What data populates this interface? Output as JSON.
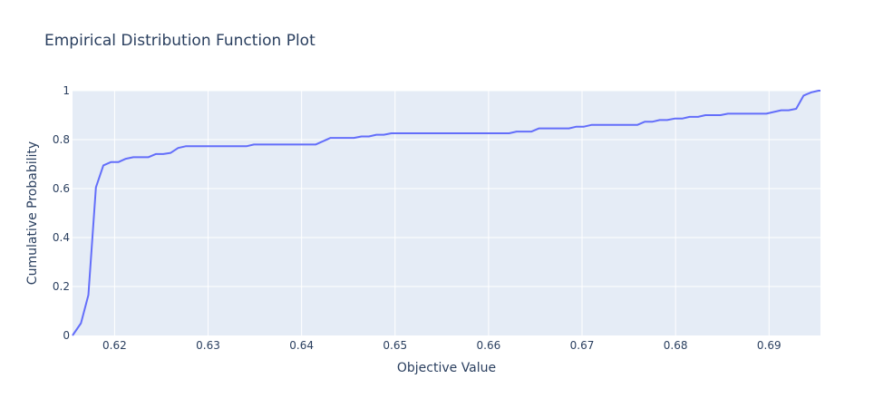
{
  "chart_data": {
    "type": "line",
    "title": "Empirical Distribution Function Plot",
    "xlabel": "Objective Value",
    "ylabel": "Cumulative Probability",
    "xlim": [
      0.6155,
      0.6955
    ],
    "ylim": [
      0,
      1
    ],
    "x_ticks": [
      0.62,
      0.63,
      0.64,
      0.65,
      0.66,
      0.67,
      0.68,
      0.69
    ],
    "x_tick_labels": [
      "0.62",
      "0.63",
      "0.64",
      "0.65",
      "0.66",
      "0.67",
      "0.68",
      "0.69"
    ],
    "y_ticks": [
      0,
      0.2,
      0.4,
      0.6,
      0.8,
      1
    ],
    "y_tick_labels": [
      "0",
      "0.2",
      "0.4",
      "0.6",
      "0.8",
      "1"
    ],
    "grid": true,
    "colors": {
      "line": "#636efa",
      "plot_bg": "#e5ecf6",
      "grid": "#ffffff",
      "text": "#2a3f5f"
    },
    "series": [
      {
        "x": [
          0.6155,
          0.6164,
          0.6172,
          0.618,
          0.6188,
          0.6196,
          0.6204,
          0.6212,
          0.622,
          0.6228,
          0.6236,
          0.6244,
          0.6252,
          0.626,
          0.6268,
          0.6276,
          0.6284,
          0.6341,
          0.6349,
          0.6415,
          0.6431,
          0.6456,
          0.6464,
          0.6472,
          0.648,
          0.6488,
          0.6496,
          0.6505,
          0.6622,
          0.663,
          0.6646,
          0.6654,
          0.6662,
          0.6686,
          0.6694,
          0.6702,
          0.671,
          0.6759,
          0.6767,
          0.6775,
          0.6783,
          0.6791,
          0.6799,
          0.6807,
          0.6815,
          0.6824,
          0.6832,
          0.684,
          0.6848,
          0.6856,
          0.6897,
          0.6905,
          0.6913,
          0.6921,
          0.6929,
          0.6937,
          0.6945,
          0.6953,
          0.6955
        ],
        "y": [
          0,
          0.05,
          0.165,
          0.605,
          0.695,
          0.708,
          0.708,
          0.722,
          0.728,
          0.728,
          0.728,
          0.741,
          0.741,
          0.746,
          0.766,
          0.773,
          0.773,
          0.773,
          0.78,
          0.78,
          0.807,
          0.807,
          0.813,
          0.813,
          0.82,
          0.82,
          0.826,
          0.826,
          0.826,
          0.833,
          0.833,
          0.846,
          0.846,
          0.846,
          0.853,
          0.853,
          0.86,
          0.86,
          0.873,
          0.873,
          0.88,
          0.88,
          0.886,
          0.886,
          0.893,
          0.893,
          0.9,
          0.9,
          0.9,
          0.906,
          0.906,
          0.913,
          0.92,
          0.92,
          0.926,
          0.98,
          0.993,
          1.0,
          1.0
        ]
      }
    ]
  }
}
